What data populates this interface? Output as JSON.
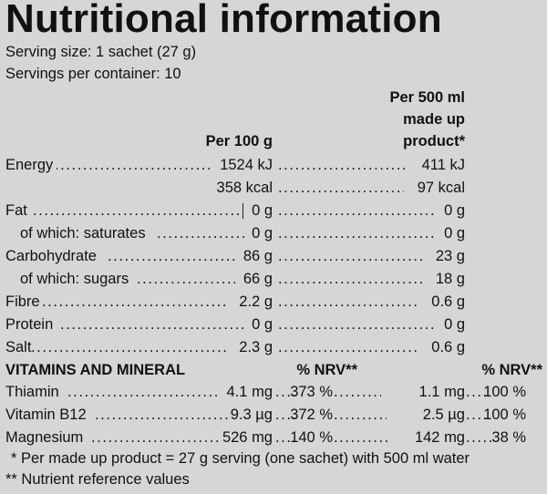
{
  "title": "Nutritional information",
  "serving_size": "Serving size: 1 sachet (27 g)",
  "servings_per_container": "Servings per container: 10",
  "headers": {
    "per100_line1": "Per 100 g",
    "per500_line1": "Per 500 ml",
    "per500_line2": "made up",
    "per500_line3": "product*"
  },
  "nutrients": [
    {
      "label": "Energy",
      "per100": "1524 kJ",
      "per500": "411 kJ"
    },
    {
      "label": "",
      "per100": "358 kcal",
      "per500": "97 kcal"
    },
    {
      "label": "Fat",
      "per100": "0 g",
      "per500": "0 g"
    },
    {
      "label": "of which: saturates",
      "per100": "0 g",
      "per500": "0 g"
    },
    {
      "label": "Carbohydrate",
      "per100": "86 g",
      "per500": "23 g"
    },
    {
      "label": "of which: sugars",
      "per100": "66 g",
      "per500": "18 g"
    },
    {
      "label": "Fibre",
      "per100": "2.2 g",
      "per500": "0.6 g"
    },
    {
      "label": "Protein",
      "per100": "0 g",
      "per500": "0 g"
    },
    {
      "label": "Salt",
      "per100": "2.3 g",
      "per500": "0.6 g"
    }
  ],
  "vitamins_header": {
    "label": "VITAMINS AND MINERAL",
    "nrv1": "% NRV**",
    "nrv2": "% NRV**"
  },
  "vitamins": [
    {
      "label": "Thiamin",
      "per100": "4.1 mg",
      "nrv100": "373 %",
      "per500": "1.1 mg",
      "nrv500": "100 %"
    },
    {
      "label": "Vitamin B12",
      "per100": "9.3 µg",
      "nrv100": "372 %",
      "per500": "2.5 µg",
      "nrv500": "100 %"
    },
    {
      "label": "Magnesium",
      "per100": "526 mg",
      "nrv100": "140 %",
      "per500": "142 mg",
      "nrv500": "38 %"
    }
  ],
  "footnotes": [
    "* Per made up product = 27 g serving (one sachet) with 500 ml water",
    "** Nutrient reference values"
  ]
}
